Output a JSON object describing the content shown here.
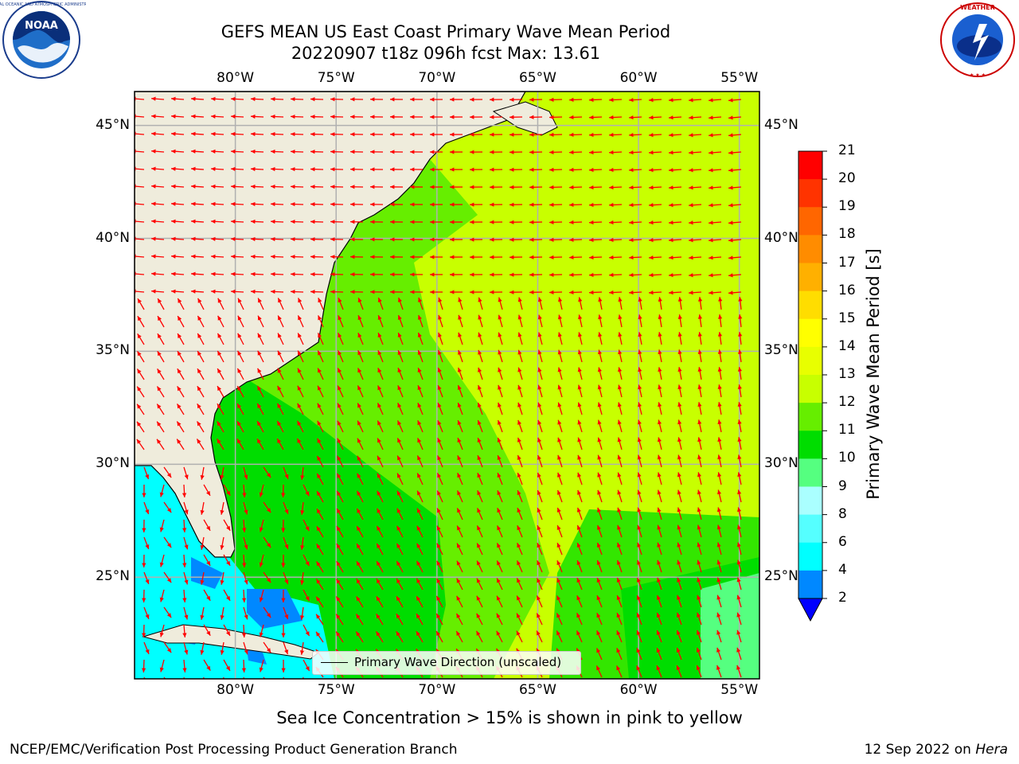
{
  "header": {
    "title_line1": "GEFS MEAN US East Coast Primary Wave Mean Period",
    "title_line2": "20220907 t18z 096h fcst   Max: 13.61"
  },
  "map": {
    "lon_labels": [
      "80°W",
      "75°W",
      "70°W",
      "65°W",
      "60°W",
      "55°W"
    ],
    "lat_labels": [
      "45°N",
      "40°N",
      "35°N",
      "30°N",
      "25°N"
    ],
    "lon_extent": [
      -85,
      -54
    ],
    "lat_extent": [
      20.5,
      46.5
    ],
    "colors": {
      "land": "#efecdc",
      "gridline": "#b0b0b0",
      "arrow": "#ff0000"
    }
  },
  "legend": {
    "label": "Primary Wave Direction (unscaled)"
  },
  "colorbar": {
    "label": "Primary Wave Mean Period [s]",
    "ticks": [
      "21",
      "20",
      "19",
      "18",
      "17",
      "16",
      "15",
      "14",
      "13",
      "12",
      "11",
      "10",
      "9",
      "8",
      "6",
      "4",
      "2"
    ],
    "colors": [
      "#ff0000",
      "#ff3300",
      "#ff6600",
      "#ff8c00",
      "#ffb000",
      "#ffdd00",
      "#ffff00",
      "#e8ff00",
      "#c8ff00",
      "#66ee00",
      "#00dd00",
      "#55ff80",
      "#aaffff",
      "#55ffff",
      "#00ffff",
      "#0088ff",
      "#0000ff"
    ]
  },
  "logos": {
    "left": "NOAA",
    "right": "NATIONAL WEATHER SERVICE"
  },
  "caption": "Sea Ice Concentration > 15% is shown in pink to yellow",
  "footer": {
    "left": "NCEP/EMC/Verification Post Processing Product Generation Branch",
    "right_date": "12 Sep 2022 on ",
    "right_host": "Hera"
  }
}
